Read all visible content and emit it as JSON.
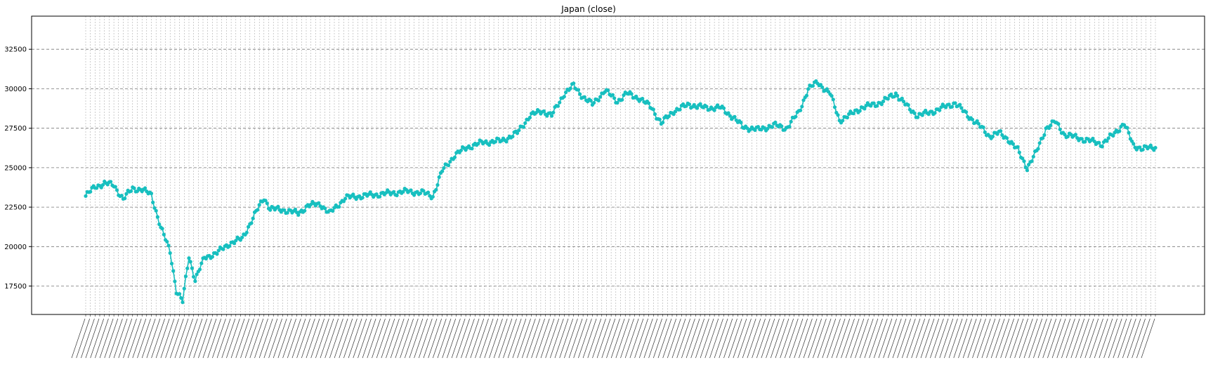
{
  "chart_data": {
    "type": "line",
    "title": "Japan (close)",
    "xlabel": "",
    "ylabel": "",
    "ylim": [
      15700,
      34600
    ],
    "y_ticks": [
      17500,
      20000,
      22500,
      25000,
      27500,
      30000,
      32500
    ],
    "grid": true,
    "marker": "circle",
    "x_tick_labels_readable": false,
    "n_points": 685,
    "anchors": [
      {
        "i": 0,
        "v": 23200
      },
      {
        "i": 6,
        "v": 23800
      },
      {
        "i": 12,
        "v": 24000
      },
      {
        "i": 18,
        "v": 23900
      },
      {
        "i": 24,
        "v": 23000
      },
      {
        "i": 30,
        "v": 23700
      },
      {
        "i": 36,
        "v": 23600
      },
      {
        "i": 42,
        "v": 23300
      },
      {
        "i": 48,
        "v": 21200
      },
      {
        "i": 54,
        "v": 19700
      },
      {
        "i": 58,
        "v": 17200
      },
      {
        "i": 62,
        "v": 16500
      },
      {
        "i": 66,
        "v": 19400
      },
      {
        "i": 70,
        "v": 17900
      },
      {
        "i": 76,
        "v": 19300
      },
      {
        "i": 84,
        "v": 19600
      },
      {
        "i": 92,
        "v": 20200
      },
      {
        "i": 100,
        "v": 20500
      },
      {
        "i": 108,
        "v": 22000
      },
      {
        "i": 114,
        "v": 23100
      },
      {
        "i": 118,
        "v": 22400
      },
      {
        "i": 128,
        "v": 22300
      },
      {
        "i": 136,
        "v": 22100
      },
      {
        "i": 142,
        "v": 22600
      },
      {
        "i": 150,
        "v": 22700
      },
      {
        "i": 156,
        "v": 22100
      },
      {
        "i": 166,
        "v": 23100
      },
      {
        "i": 176,
        "v": 23200
      },
      {
        "i": 186,
        "v": 23300
      },
      {
        "i": 196,
        "v": 23400
      },
      {
        "i": 206,
        "v": 23500
      },
      {
        "i": 216,
        "v": 23400
      },
      {
        "i": 222,
        "v": 23200
      },
      {
        "i": 228,
        "v": 24800
      },
      {
        "i": 236,
        "v": 25800
      },
      {
        "i": 244,
        "v": 26300
      },
      {
        "i": 254,
        "v": 26600
      },
      {
        "i": 266,
        "v": 26700
      },
      {
        "i": 276,
        "v": 27200
      },
      {
        "i": 284,
        "v": 28300
      },
      {
        "i": 292,
        "v": 28600
      },
      {
        "i": 298,
        "v": 28300
      },
      {
        "i": 306,
        "v": 29700
      },
      {
        "i": 312,
        "v": 30200
      },
      {
        "i": 318,
        "v": 29500
      },
      {
        "i": 324,
        "v": 29000
      },
      {
        "i": 332,
        "v": 29900
      },
      {
        "i": 340,
        "v": 29200
      },
      {
        "i": 346,
        "v": 29700
      },
      {
        "i": 354,
        "v": 29400
      },
      {
        "i": 362,
        "v": 28800
      },
      {
        "i": 368,
        "v": 27800
      },
      {
        "i": 376,
        "v": 28600
      },
      {
        "i": 386,
        "v": 29000
      },
      {
        "i": 396,
        "v": 28800
      },
      {
        "i": 406,
        "v": 28800
      },
      {
        "i": 414,
        "v": 28200
      },
      {
        "i": 420,
        "v": 27600
      },
      {
        "i": 430,
        "v": 27400
      },
      {
        "i": 440,
        "v": 27700
      },
      {
        "i": 448,
        "v": 27500
      },
      {
        "i": 456,
        "v": 28500
      },
      {
        "i": 462,
        "v": 30000
      },
      {
        "i": 468,
        "v": 30400
      },
      {
        "i": 476,
        "v": 29700
      },
      {
        "i": 482,
        "v": 28000
      },
      {
        "i": 488,
        "v": 28300
      },
      {
        "i": 496,
        "v": 28800
      },
      {
        "i": 504,
        "v": 29000
      },
      {
        "i": 510,
        "v": 29200
      },
      {
        "i": 518,
        "v": 29700
      },
      {
        "i": 526,
        "v": 28800
      },
      {
        "i": 532,
        "v": 28300
      },
      {
        "i": 540,
        "v": 28500
      },
      {
        "i": 548,
        "v": 28800
      },
      {
        "i": 556,
        "v": 29100
      },
      {
        "i": 562,
        "v": 28500
      },
      {
        "i": 570,
        "v": 27800
      },
      {
        "i": 578,
        "v": 27000
      },
      {
        "i": 584,
        "v": 27200
      },
      {
        "i": 590,
        "v": 26800
      },
      {
        "i": 596,
        "v": 26100
      },
      {
        "i": 602,
        "v": 25000
      },
      {
        "i": 608,
        "v": 26000
      },
      {
        "i": 614,
        "v": 27500
      },
      {
        "i": 620,
        "v": 27900
      },
      {
        "i": 626,
        "v": 27100
      },
      {
        "i": 634,
        "v": 26900
      },
      {
        "i": 642,
        "v": 26700
      },
      {
        "i": 650,
        "v": 26500
      },
      {
        "i": 656,
        "v": 27000
      },
      {
        "i": 664,
        "v": 27800
      },
      {
        "i": 670,
        "v": 26400
      },
      {
        "i": 676,
        "v": 26200
      },
      {
        "i": 684,
        "v": 26300
      }
    ],
    "anchors_part2_scale": 2.0
  },
  "colors": {
    "series": "#17bfbf",
    "grid": "#9a9a9a",
    "axes": "#000000",
    "background": "#ffffff"
  }
}
